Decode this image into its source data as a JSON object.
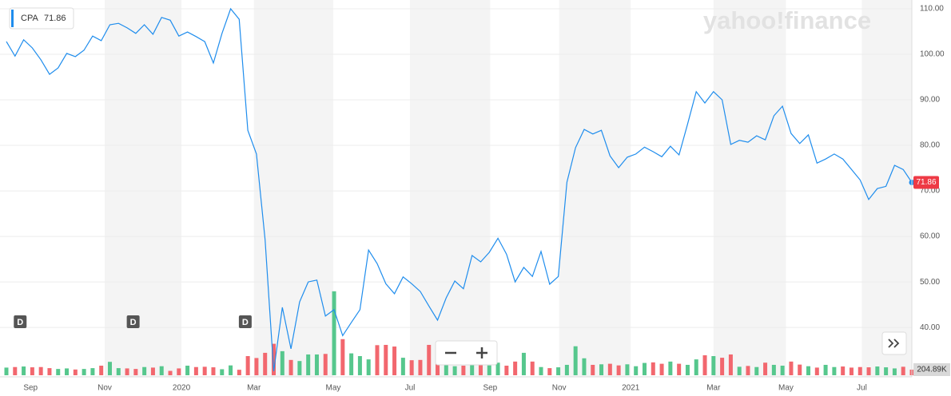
{
  "chart_data": {
    "type": "line",
    "watermark": "yahoo!finance",
    "xlim": [
      0,
      105
    ],
    "xticks": [
      {
        "value": 2.8,
        "label": "Sep"
      },
      {
        "value": 11.4,
        "label": "Nov"
      },
      {
        "value": 20.3,
        "label": "2020"
      },
      {
        "value": 28.7,
        "label": "Mar"
      },
      {
        "value": 37.9,
        "label": "May"
      },
      {
        "value": 46.8,
        "label": "Jul"
      },
      {
        "value": 56.1,
        "label": "Sep"
      },
      {
        "value": 64.1,
        "label": "Nov"
      },
      {
        "value": 72.4,
        "label": "2021"
      },
      {
        "value": 82.0,
        "label": "Mar"
      },
      {
        "value": 90.4,
        "label": "May"
      },
      {
        "value": 99.2,
        "label": "Jul"
      }
    ],
    "ylim": [
      29.5,
      110
    ],
    "yticks": [
      {
        "value": 40,
        "label": "40.00"
      },
      {
        "value": 50,
        "label": "50.00"
      },
      {
        "value": 60,
        "label": "60.00"
      },
      {
        "value": 70,
        "label": "70.00"
      },
      {
        "value": 80,
        "label": "80.00"
      },
      {
        "value": 90,
        "label": "90.00"
      },
      {
        "value": 100,
        "label": "100.00"
      },
      {
        "value": 110,
        "label": "110.00"
      }
    ],
    "y2lim": [
      0,
      13400000
    ],
    "grid": true,
    "band_color": "#f4f4f4",
    "price_tag_color": "#ee3a45",
    "series": [
      {
        "name": "CPA",
        "color": "#1f8ded",
        "values": [
          102.8,
          99.6,
          103.2,
          101.4,
          98.8,
          95.6,
          97.0,
          100.2,
          99.5,
          100.9,
          104.0,
          103.0,
          106.5,
          106.8,
          105.8,
          104.6,
          106.5,
          104.4,
          108.1,
          107.5,
          104.0,
          104.9,
          103.9,
          102.8,
          98.1,
          104.6,
          110.0,
          107.7,
          83.3,
          78.1,
          59.3,
          30.4,
          44.4,
          35.3,
          45.6,
          50.0,
          50.4,
          42.5,
          43.9,
          38.2,
          41.1,
          43.9,
          57.0,
          54.0,
          49.6,
          47.4,
          51.1,
          49.6,
          47.9,
          44.7,
          41.6,
          46.5,
          50.2,
          48.5,
          55.8,
          54.4,
          56.5,
          59.6,
          56.1,
          50.0,
          53.2,
          51.2,
          56.7,
          49.5,
          51.2,
          71.9,
          79.5,
          83.5,
          82.5,
          83.3,
          77.7,
          75.1,
          77.4,
          78.1,
          79.6,
          78.6,
          77.5,
          79.8,
          77.9,
          84.7,
          91.8,
          89.3,
          91.8,
          90.0,
          80.2,
          81.1,
          80.7,
          82.1,
          81.2,
          86.5,
          88.6,
          82.6,
          80.4,
          82.3,
          76.1,
          77.0,
          78.1,
          77.0,
          74.7,
          72.4,
          68.1,
          70.5,
          71.0,
          75.6,
          74.7,
          71.86
        ]
      }
    ],
    "volume": {
      "axis": "y2",
      "up_color": "#56c78d",
      "down_color": "#f2676e",
      "values": [
        280000,
        300000,
        320000,
        290000,
        300000,
        260000,
        230000,
        250000,
        210000,
        230000,
        260000,
        350000,
        490000,
        260000,
        250000,
        230000,
        300000,
        280000,
        330000,
        160000,
        250000,
        350000,
        300000,
        310000,
        290000,
        220000,
        360000,
        200000,
        700000,
        630000,
        820000,
        1150000,
        880000,
        560000,
        520000,
        760000,
        760000,
        780000,
        3070000,
        1320000,
        800000,
        700000,
        580000,
        1100000,
        1110000,
        1050000,
        640000,
        550000,
        560000,
        1110000,
        560000,
        420000,
        330000,
        350000,
        380000,
        400000,
        360000,
        460000,
        350000,
        500000,
        820000,
        500000,
        300000,
        260000,
        290000,
        380000,
        1060000,
        620000,
        380000,
        400000,
        420000,
        360000,
        400000,
        330000,
        450000,
        470000,
        420000,
        500000,
        420000,
        380000,
        580000,
        730000,
        700000,
        640000,
        760000,
        310000,
        340000,
        300000,
        460000,
        380000,
        350000,
        500000,
        390000,
        330000,
        280000,
        380000,
        300000,
        320000,
        280000,
        300000,
        290000,
        320000,
        290000,
        250000,
        310000,
        204890
      ],
      "value_labels": [
        null,
        null,
        null,
        null,
        null,
        null,
        null,
        null,
        null,
        null,
        null,
        null,
        null,
        null,
        null,
        null,
        null,
        null,
        null,
        null,
        null,
        null,
        null,
        null,
        null,
        null,
        null,
        null,
        null,
        null,
        null,
        null,
        null,
        null,
        null,
        null,
        null,
        null,
        null,
        null,
        null,
        null,
        null,
        null,
        null,
        null,
        null,
        null,
        null,
        null,
        null,
        null,
        null,
        null,
        null,
        null,
        null,
        null,
        null,
        null,
        null,
        null,
        null,
        null,
        null,
        null,
        null,
        null,
        null,
        null,
        null,
        null,
        null,
        null,
        null,
        null,
        null,
        null,
        null,
        null,
        null,
        null,
        null,
        null,
        null,
        null,
        null,
        null,
        null,
        null,
        null,
        null,
        null,
        null,
        null,
        null,
        null,
        null,
        null,
        null,
        null,
        null,
        null,
        null,
        null,
        "204.89K"
      ]
    },
    "dividends": [
      {
        "x": 1.6,
        "label": "D"
      },
      {
        "x": 14.7,
        "label": "D"
      },
      {
        "x": 27.7,
        "label": "D"
      }
    ]
  }
}
